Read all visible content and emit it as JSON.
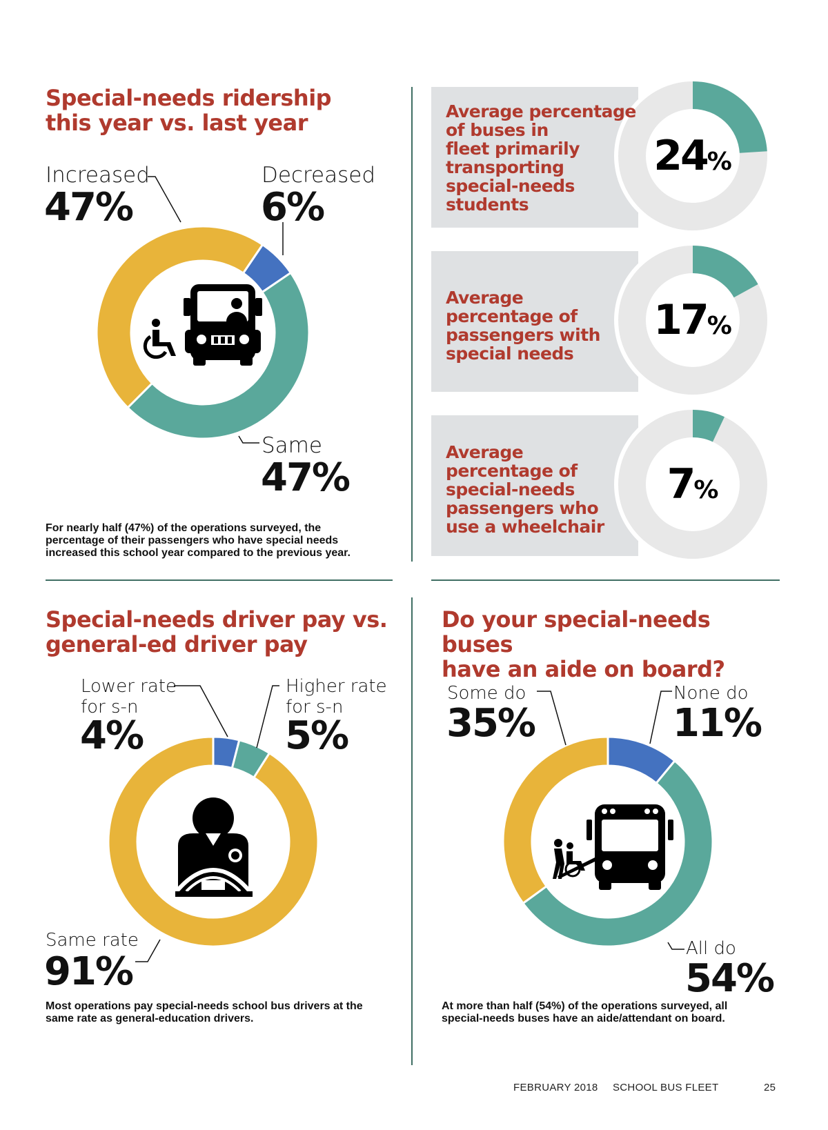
{
  "chart_data": [
    {
      "type": "pie",
      "title": "Special-needs ridership this year vs. last year",
      "series": [
        {
          "name": "Increased",
          "value": 47,
          "value_label": "47%",
          "color": "#e8b43a"
        },
        {
          "name": "Decreased",
          "value": 6,
          "value_label": "6%",
          "color": "#4472c0"
        },
        {
          "name": "Same",
          "value": 47,
          "value_label": "47%",
          "color": "#5aa89b"
        }
      ],
      "caption": "For nearly half (47%) of the operations surveyed, the percentage of their passengers who have special needs increased this school year compared to the previous year.",
      "icon": "school-bus-wheelchair-icon"
    },
    {
      "type": "pie",
      "title": "Special-needs driver pay vs. general-ed driver pay",
      "series": [
        {
          "name": "Lower rate for s-n",
          "value": 4,
          "value_label": "4%",
          "color": "#4472c0"
        },
        {
          "name": "Higher rate for s-n",
          "value": 5,
          "value_label": "5%",
          "color": "#5aa89b"
        },
        {
          "name": "Same rate",
          "value": 91,
          "value_label": "91%",
          "color": "#e8b43a"
        }
      ],
      "caption": "Most operations pay special-needs school bus drivers at the same rate as general-education drivers.",
      "icon": "bus-driver-icon"
    },
    {
      "type": "pie",
      "title": "Do your special-needs buses have an aide on board?",
      "series": [
        {
          "name": "None do",
          "value": 11,
          "value_label": "11%",
          "color": "#4472c0"
        },
        {
          "name": "All do",
          "value": 54,
          "value_label": "54%",
          "color": "#5aa89b"
        },
        {
          "name": "Some do",
          "value": 35,
          "value_label": "35%",
          "color": "#e8b43a"
        }
      ],
      "caption": "At more than half (54%) of the operations surveyed, all special-needs buses have an aide/attendant on board.",
      "icon": "bus-aide-wheelchair-icon"
    },
    {
      "type": "pie",
      "title": "Average percentage of buses in fleet primarily transporting special-needs students",
      "values": [
        24
      ],
      "value_text": "24",
      "percent_sign": "%",
      "color": "#5aa89b"
    },
    {
      "type": "pie",
      "title": "Average percentage of passengers with special needs",
      "values": [
        17
      ],
      "value_text": "17",
      "percent_sign": "%",
      "color": "#5aa89b"
    },
    {
      "type": "pie",
      "title": "Average percentage of special-needs passengers who use a wheelchair",
      "values": [
        7
      ],
      "value_text": "7",
      "percent_sign": "%",
      "color": "#5aa89b"
    }
  ],
  "labels": {
    "ridership": {
      "title_l1": "Special-needs ridership",
      "title_l2": "this year vs. last year",
      "increased": "Increased",
      "increased_v": "47%",
      "decreased": "Decreased",
      "decreased_v": "6%",
      "same": "Same",
      "same_v": "47%"
    },
    "pay": {
      "title_l1": "Special-needs driver pay vs.",
      "title_l2": "general-ed driver pay",
      "lower_l1": "Lower rate",
      "lower_l2": "for s-n",
      "lower_v": "4%",
      "higher_l1": "Higher rate",
      "higher_l2": "for s-n",
      "higher_v": "5%",
      "same": "Same rate",
      "same_v": "91%"
    },
    "aide": {
      "title_l1": "Do your special-needs buses",
      "title_l2": "have an aide on board?",
      "some": "Some do",
      "some_v": "35%",
      "none": "None do",
      "none_v": "11%",
      "all": "All do",
      "all_v": "54%"
    },
    "panels": [
      [
        "Average percentage",
        "of buses in",
        "fleet primarily",
        "transporting",
        "special-needs",
        "students"
      ],
      [
        "Average",
        "percentage of",
        "passengers with",
        "special needs"
      ],
      [
        "Average",
        "percentage of",
        "special-needs",
        "passengers who",
        "use a wheelchair"
      ]
    ]
  },
  "colors": {
    "yellow": "#e8b43a",
    "teal": "#5aa89b",
    "blue": "#4472c0",
    "red_title": "#b03a2e",
    "panel_bg": "#dfe1e3",
    "ring_bg": "#e8e8e8",
    "rule": "#3f6e63"
  },
  "footer": {
    "date": "FEBRUARY 2018",
    "publication": "SCHOOL BUS FLEET",
    "page": "25"
  }
}
